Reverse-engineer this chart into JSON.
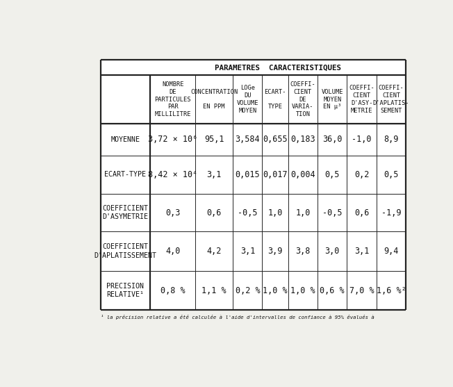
{
  "title": "PARAMETRES  CARACTERISTIQUES",
  "col_headers": [
    "NOMBRE\nDE\nPARTICULES\nPAR\nMILLILITRE",
    "CONCENTRATION\n\nEN PPM",
    "LOGe\nDU\nVOLUME\nMOYEN",
    "ECART-\n\nTYPE",
    "COEFFI-\nCIENT\nDE\nVARIA-\nTION",
    "VOLUME\nMOYEN\nEN µ³",
    "COEFFI-\nCIENT\nD'ASY-\nMETRIE",
    "COEFFI-\nCIENT\nD'APLATIS-\nSEMENT"
  ],
  "row_headers": [
    "MOYENNE",
    "ECART-TYPE",
    "COEFFICIENT\nD'ASYMETRIE",
    "COEFFICIENT\nD'APLATISSEMENT",
    "PRECISION\nRELATIVE¹"
  ],
  "data": [
    [
      "3,72 × 10⁶",
      "95,1",
      "3,584",
      "0,655",
      "0,183",
      "36,0",
      "-1,0",
      "8,9"
    ],
    [
      "8,42 × 10⁴",
      "3,1",
      "0,015",
      "0,017",
      "0,004",
      "0,5",
      "0,2",
      "0,5"
    ],
    [
      "0,3",
      "0,6",
      "-0,5",
      "1,0",
      "1,0",
      "-0,5",
      "0,6",
      "-1,9"
    ],
    [
      "4,0",
      "4,2",
      "3,1",
      "3,9",
      "3,8",
      "3,0",
      "3,1",
      "9,4"
    ],
    [
      "0,8 %",
      "1,1 %",
      "0,2 %",
      "1,0 %",
      "1,0 %",
      "0,6 %",
      "7,0 %",
      "1,6 %²"
    ]
  ],
  "footnote": "¹ la précision relative a été calculée à l'aide d'intervalles de confiance à 95% évalués à",
  "bg_color": "#f0f0eb",
  "border_color": "#222222",
  "text_color": "#111111",
  "header_fontsize": 6.2,
  "data_fontsize": 8.5,
  "row_header_fontsize": 7.2,
  "title_fontsize": 7.8
}
